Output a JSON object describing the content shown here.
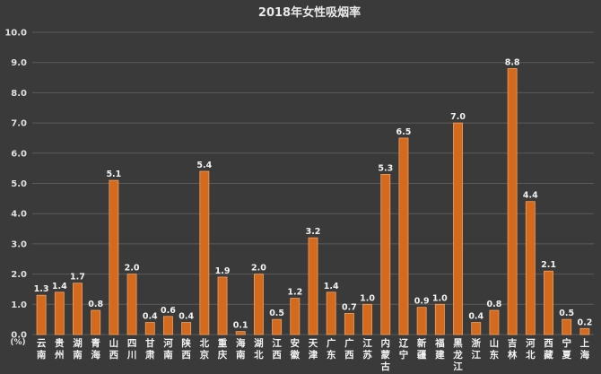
{
  "chart_data": {
    "type": "bar",
    "title": "2018年女性吸烟率",
    "ylabel": "(%)",
    "ylim": [
      0,
      10
    ],
    "yticks": [
      "0.0",
      "1.0",
      "2.0",
      "3.0",
      "4.0",
      "5.0",
      "6.0",
      "7.0",
      "8.0",
      "9.0",
      "10.0"
    ],
    "grid": true,
    "bar_color": "#d36a1e",
    "background": "#3a3a3a",
    "categories": [
      "云南",
      "贵州",
      "湖南",
      "青海",
      "山西",
      "四川",
      "甘肃",
      "河南",
      "陕西",
      "北京",
      "重庆",
      "海南",
      "湖北",
      "江西",
      "安徽",
      "天津",
      "广东",
      "广西",
      "江苏",
      "内蒙古",
      "辽宁",
      "新疆",
      "福建",
      "黑龙江",
      "浙江",
      "山东",
      "吉林",
      "河北",
      "西藏",
      "宁夏",
      "上海"
    ],
    "values": [
      1.3,
      1.4,
      1.7,
      0.8,
      5.1,
      2.0,
      0.4,
      0.6,
      0.4,
      5.4,
      1.9,
      0.1,
      2.0,
      0.5,
      1.2,
      3.2,
      1.4,
      0.7,
      1.0,
      5.3,
      6.5,
      0.9,
      1.0,
      7.0,
      0.4,
      0.8,
      8.8,
      4.4,
      2.1,
      0.5,
      0.2
    ],
    "value_labels": [
      "1.3",
      "1.4",
      "1.7",
      "0.8",
      "5.1",
      "2.0",
      "0.4",
      "0.6",
      "0.4",
      "5.4",
      "1.9",
      "0.1",
      "2.0",
      "0.5",
      "1.2",
      "3.2",
      "1.4",
      "0.7",
      "1.0",
      "5.3",
      "6.5",
      "0.9",
      "1.0",
      "7.0",
      "0.4",
      "0.8",
      "8.8",
      "4.4",
      "2.1",
      "0.5",
      "0.2"
    ]
  }
}
